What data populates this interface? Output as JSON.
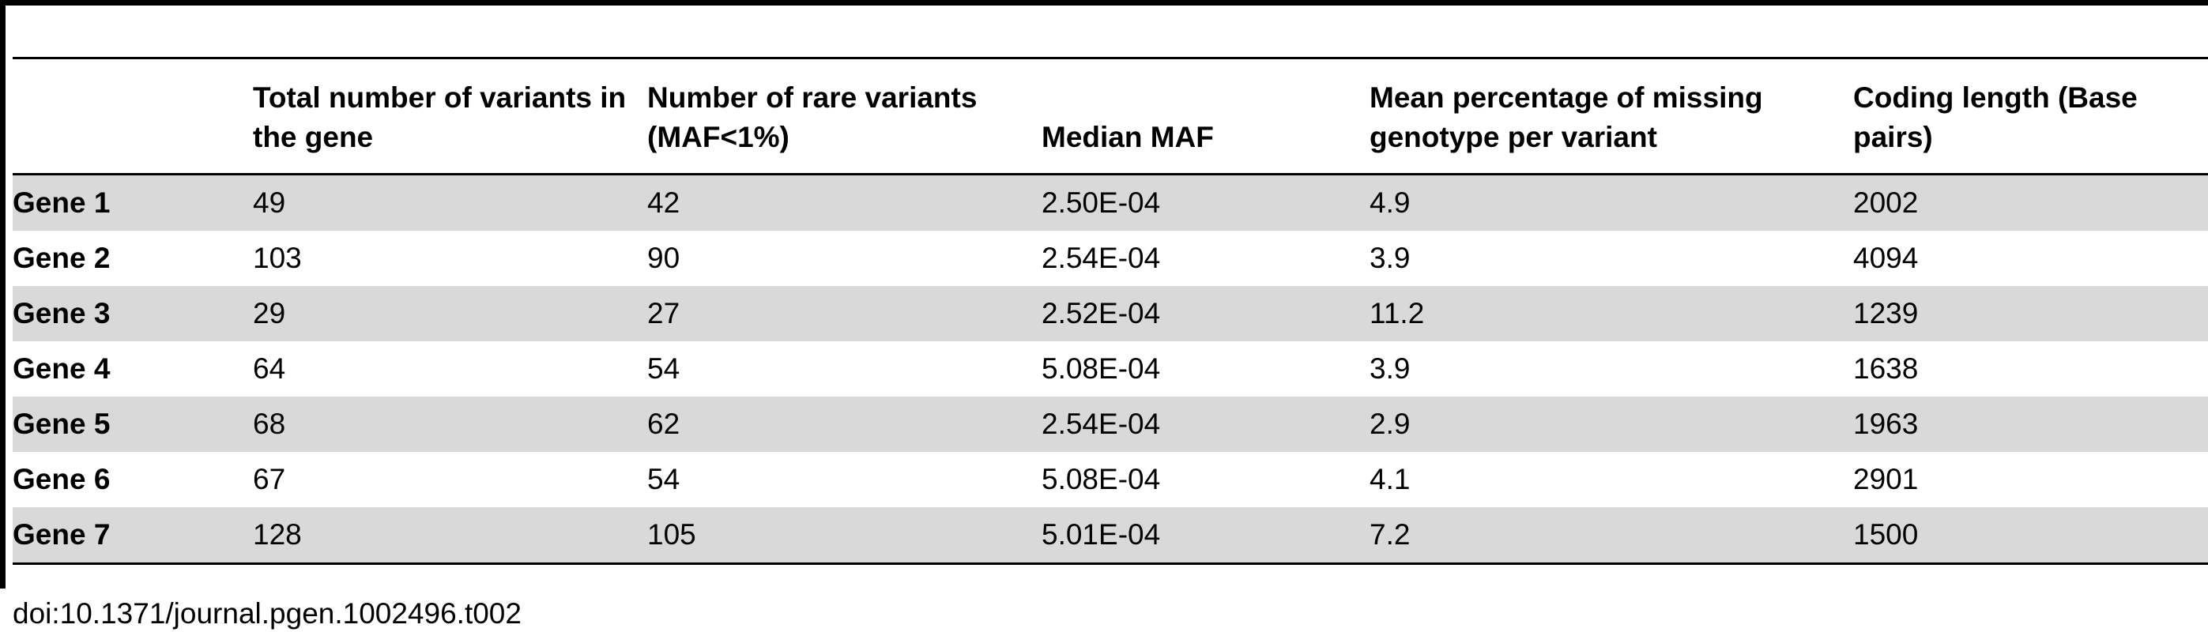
{
  "table": {
    "columns": [
      "",
      "Total number of variants in the gene",
      "Number of rare variants (MAF<1%)",
      "Median MAF",
      "Mean percentage of missing genotype per variant",
      "Coding length (Base pairs)"
    ],
    "rows": [
      {
        "gene": "Gene 1",
        "total": "49",
        "rare": "42",
        "median_maf": "2.50E-04",
        "missing": "4.9",
        "coding_length": "2002"
      },
      {
        "gene": "Gene 2",
        "total": "103",
        "rare": "90",
        "median_maf": "2.54E-04",
        "missing": "3.9",
        "coding_length": "4094"
      },
      {
        "gene": "Gene 3",
        "total": "29",
        "rare": "27",
        "median_maf": "2.52E-04",
        "missing": "11.2",
        "coding_length": "1239"
      },
      {
        "gene": "Gene 4",
        "total": "64",
        "rare": "54",
        "median_maf": "5.08E-04",
        "missing": "3.9",
        "coding_length": "1638"
      },
      {
        "gene": "Gene 5",
        "total": "68",
        "rare": "62",
        "median_maf": "2.54E-04",
        "missing": "2.9",
        "coding_length": "1963"
      },
      {
        "gene": "Gene 6",
        "total": "67",
        "rare": "54",
        "median_maf": "5.08E-04",
        "missing": "4.1",
        "coding_length": "2901"
      },
      {
        "gene": "Gene 7",
        "total": "128",
        "rare": "105",
        "median_maf": "5.01E-04",
        "missing": "7.2",
        "coding_length": "1500"
      }
    ]
  },
  "footer": {
    "doi": "doi:10.1371/journal.pgen.1002496.t002"
  }
}
